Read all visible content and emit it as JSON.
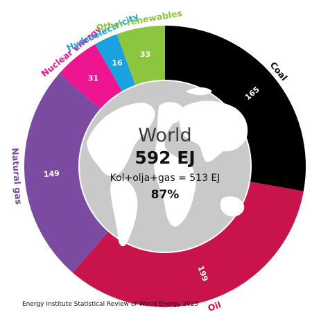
{
  "chart_data": {
    "type": "pie",
    "variant": "donut",
    "categories": [
      "Coal",
      "Oil",
      "Natural gas",
      "Nuclear energy",
      "Hydroelectricity",
      "Other renewables"
    ],
    "values": [
      165,
      199,
      149,
      31,
      16,
      33
    ],
    "colors": [
      "#000000",
      "#c8144b",
      "#7a4ba0",
      "#ee1592",
      "#1ba0e0",
      "#8cc63f"
    ],
    "start_at": "top, clockwise from Coal",
    "center": {
      "title": "World",
      "total": "592 EJ",
      "subtitle": "Kol+olja+gas = 513 EJ",
      "percent": "87%"
    },
    "source": "Energy Institute Statistical Review of World Energy 2025"
  }
}
